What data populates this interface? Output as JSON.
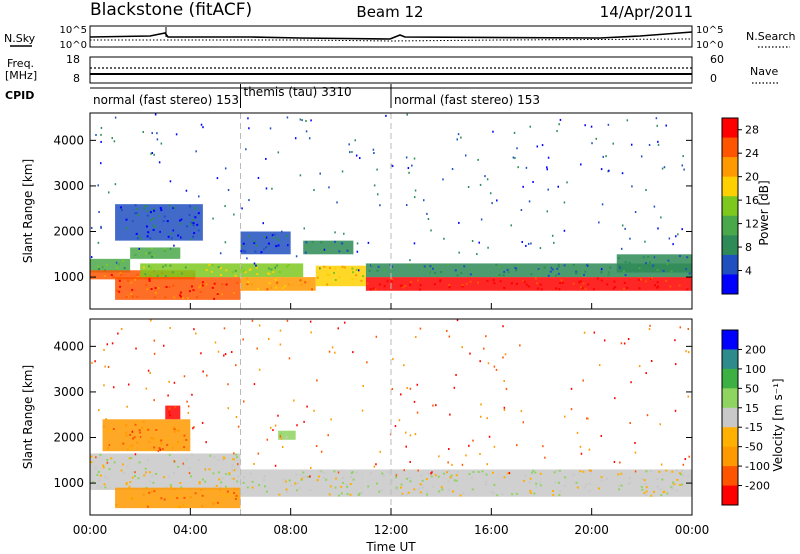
{
  "header": {
    "station": "Blackstone (fitACF)",
    "beam": "Beam 12",
    "date": "14/Apr/2011"
  },
  "aux": {
    "nsky_label": "N.Sky",
    "nsearch_label": "N.Search",
    "freq_label": "Freq.",
    "freq_unit": "[MHz]",
    "nave_label": "Nave",
    "cpid_label": "CPID",
    "noise_ticks_left": [
      "10^5",
      "10^0"
    ],
    "noise_ticks_right": [
      "10^5",
      "10^0"
    ],
    "freq_ticks": [
      "18",
      "8"
    ],
    "nave_ticks": [
      "60",
      "0"
    ]
  },
  "cpid_segments": [
    {
      "text": "normal (fast stereo) 153",
      "start": 0,
      "end": 6
    },
    {
      "text": "themis (tau) 3310",
      "start": 6,
      "end": 12
    },
    {
      "text": "normal (fast stereo) 153",
      "start": 12,
      "end": 24
    }
  ],
  "chart_data": [
    {
      "type": "heatmap",
      "panel": "power",
      "ylabel": "Slant Range [km]",
      "y_ticks": [
        "1000",
        "2000",
        "3000",
        "4000"
      ],
      "ylim": [
        300,
        4600
      ],
      "colorbar_label": "Power [dB]",
      "colorbar_ticks": [
        "4",
        "8",
        "12",
        "16",
        "20",
        "24",
        "28"
      ],
      "colorbar_range": [
        0,
        30
      ],
      "colors": [
        "#0000ff",
        "#2050c0",
        "#2e8b57",
        "#4aa84a",
        "#7ec81e",
        "#ffd000",
        "#ff9900",
        "#ff5500",
        "#ff0000"
      ],
      "bands": [
        {
          "x": [
            0.0,
            1.6
          ],
          "y": [
            1100,
            1400
          ],
          "level": 3
        },
        {
          "x": [
            1.6,
            3.6
          ],
          "y": [
            1400,
            1650
          ],
          "level": 3
        },
        {
          "x": [
            0.0,
            4.2
          ],
          "y": [
            950,
            1150
          ],
          "level": 7
        },
        {
          "x": [
            1.0,
            6.0
          ],
          "y": [
            500,
            1000
          ],
          "level": 7
        },
        {
          "x": [
            2.0,
            8.5
          ],
          "y": [
            1000,
            1300
          ],
          "level": 4
        },
        {
          "x": [
            6.0,
            9.0
          ],
          "y": [
            700,
            1000
          ],
          "level": 6
        },
        {
          "x": [
            9.0,
            11.0
          ],
          "y": [
            800,
            1250
          ],
          "level": 5
        },
        {
          "x": [
            11.0,
            24.0
          ],
          "y": [
            700,
            1000
          ],
          "level": 8
        },
        {
          "x": [
            11.0,
            24.0
          ],
          "y": [
            1000,
            1300
          ],
          "level": 2
        },
        {
          "x": [
            1.0,
            4.5
          ],
          "y": [
            1800,
            2600
          ],
          "level": 1
        },
        {
          "x": [
            6.0,
            8.0
          ],
          "y": [
            1500,
            2000
          ],
          "level": 1
        },
        {
          "x": [
            8.5,
            10.5
          ],
          "y": [
            1500,
            1800
          ],
          "level": 2
        },
        {
          "x": [
            21.0,
            24.0
          ],
          "y": [
            1100,
            1500
          ],
          "level": 2
        }
      ]
    },
    {
      "type": "heatmap",
      "panel": "velocity",
      "ylabel": "Slant Range [km]",
      "y_ticks": [
        "1000",
        "2000",
        "3000",
        "4000"
      ],
      "ylim": [
        300,
        4600
      ],
      "xlabel": "Time UT",
      "x_ticks": [
        "00:00",
        "04:00",
        "08:00",
        "12:00",
        "16:00",
        "20:00",
        "00:00"
      ],
      "xlim": [
        0,
        24
      ],
      "colorbar_label": "Velocity [m s⁻¹]",
      "colorbar_ticks": [
        "200",
        "100",
        "50",
        "15",
        "-15",
        "-50",
        "-100",
        "-200"
      ],
      "colorbar_range": [
        -250,
        250
      ],
      "colors": [
        "#ff0000",
        "#ff5500",
        "#ff9900",
        "#ffb000",
        "#c8c8c8",
        "#8fd460",
        "#3cb043",
        "#2e8b8b",
        "#0000ff"
      ],
      "bands": [
        {
          "x": [
            0.0,
            6.0
          ],
          "y": [
            850,
            1650
          ],
          "level": 4
        },
        {
          "x": [
            1.0,
            6.0
          ],
          "y": [
            450,
            900
          ],
          "level": 2
        },
        {
          "x": [
            6.0,
            11.0
          ],
          "y": [
            700,
            1300
          ],
          "level": 4
        },
        {
          "x": [
            11.0,
            24.0
          ],
          "y": [
            700,
            1300
          ],
          "level": 4
        },
        {
          "x": [
            7.5,
            8.2
          ],
          "y": [
            1950,
            2150
          ],
          "level": 5
        },
        {
          "x": [
            0.5,
            4.0
          ],
          "y": [
            1700,
            2400
          ],
          "level": 2
        },
        {
          "x": [
            3.0,
            3.6
          ],
          "y": [
            2400,
            2700
          ],
          "level": 0
        }
      ]
    }
  ]
}
